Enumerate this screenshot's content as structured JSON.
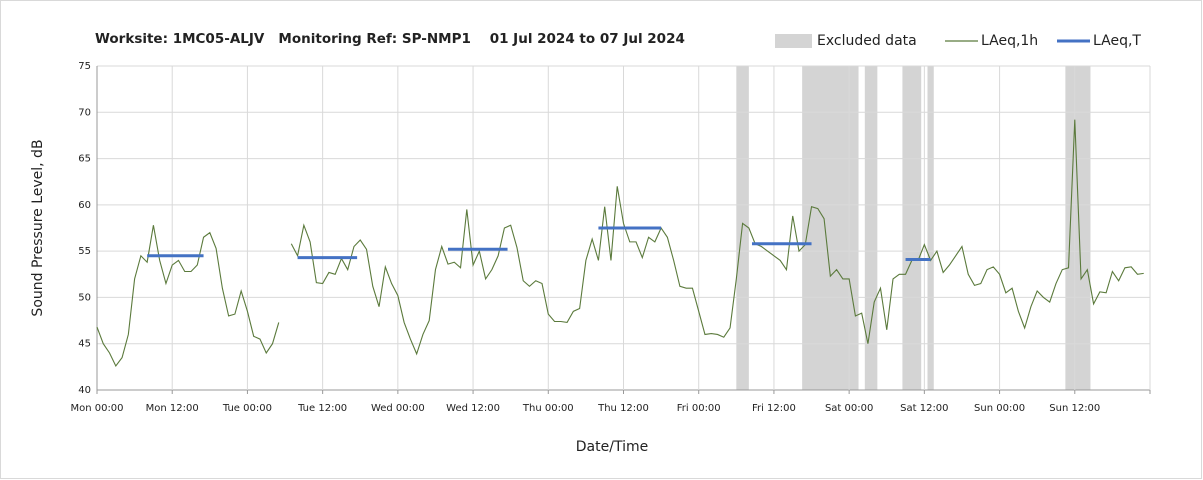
{
  "chart_data": {
    "type": "line",
    "title": "Worksite: 1MC05-ALJV   Monitoring Ref: SP-NMP1    01 Jul 2024 to 07 Jul 2024",
    "xlabel": "Date/Time",
    "ylabel": "Sound Pressure Level, dB",
    "xlim": [
      0,
      168
    ],
    "ylim": [
      40,
      75
    ],
    "yticks": [
      40,
      45,
      50,
      55,
      60,
      65,
      70,
      75
    ],
    "xticks": [
      {
        "value": 0,
        "label": "Mon 00:00"
      },
      {
        "value": 12,
        "label": "Mon 12:00"
      },
      {
        "value": 24,
        "label": "Tue 00:00"
      },
      {
        "value": 36,
        "label": "Tue 12:00"
      },
      {
        "value": 48,
        "label": "Wed 00:00"
      },
      {
        "value": 60,
        "label": "Wed 12:00"
      },
      {
        "value": 72,
        "label": "Thu 00:00"
      },
      {
        "value": 84,
        "label": "Thu 12:00"
      },
      {
        "value": 96,
        "label": "Fri 00:00"
      },
      {
        "value": 108,
        "label": "Fri 12:00"
      },
      {
        "value": 120,
        "label": "Sat 00:00"
      },
      {
        "value": 132,
        "label": "Sat 12:00"
      },
      {
        "value": 144,
        "label": "Sun 00:00"
      },
      {
        "value": 156,
        "label": "Sun 12:00"
      },
      {
        "value": 168,
        "label": null
      }
    ],
    "grid": true,
    "legend": "top-right",
    "x": [
      0,
      1,
      2,
      3,
      4,
      5,
      6,
      7,
      8,
      9,
      10,
      11,
      12,
      13,
      14,
      15,
      16,
      17,
      18,
      19,
      20,
      21,
      22,
      23,
      24,
      25,
      26,
      27,
      28,
      29,
      30,
      31,
      32,
      33,
      34,
      35,
      36,
      37,
      38,
      39,
      40,
      41,
      42,
      43,
      44,
      45,
      46,
      47,
      48,
      49,
      50,
      51,
      52,
      53,
      54,
      55,
      56,
      57,
      58,
      59,
      60,
      61,
      62,
      63,
      64,
      65,
      66,
      67,
      68,
      69,
      70,
      71,
      72,
      73,
      74,
      75,
      76,
      77,
      78,
      79,
      80,
      81,
      82,
      83,
      84,
      85,
      86,
      87,
      88,
      89,
      90,
      91,
      92,
      93,
      94,
      95,
      96,
      97,
      98,
      99,
      100,
      101,
      102,
      103,
      104,
      105,
      106,
      107,
      108,
      109,
      110,
      111,
      112,
      113,
      114,
      115,
      116,
      117,
      118,
      119,
      120,
      121,
      122,
      123,
      124,
      125,
      126,
      127,
      128,
      129,
      130,
      131,
      132,
      133,
      134,
      135,
      136,
      137,
      138,
      139,
      140,
      141,
      142,
      143,
      144,
      145,
      146,
      147,
      148,
      149,
      150,
      151,
      152,
      153,
      154,
      155,
      156,
      157,
      158,
      159,
      160,
      161,
      162,
      163,
      164,
      165,
      166,
      167
    ],
    "series": [
      {
        "name": "LAeq,1h",
        "color": "#5b7a3c",
        "values": [
          46.8,
          45,
          44,
          42.6,
          43.5,
          46,
          52,
          54.5,
          53.8,
          57.8,
          54,
          51.5,
          53.5,
          54,
          52.8,
          52.8,
          53.5,
          56.5,
          57,
          55.3,
          51,
          48,
          48.2,
          50.7,
          48.5,
          45.8,
          45.5,
          44,
          45,
          47.3,
          null,
          55.8,
          54.5,
          57.8,
          56,
          51.6,
          51.5,
          52.7,
          52.5,
          54.2,
          53,
          55.5,
          56.2,
          55.2,
          51.2,
          49,
          53.3,
          51.5,
          50.2,
          47.3,
          45.5,
          43.9,
          46,
          47.5,
          53,
          55.5,
          53.6,
          53.8,
          53.2,
          59.5,
          53.5,
          55,
          52,
          53,
          54.5,
          57.5,
          57.8,
          55.4,
          51.8,
          51.2,
          51.8,
          51.5,
          48.2,
          47.4,
          47.4,
          47.3,
          48.5,
          48.8,
          54,
          56.3,
          54,
          59.8,
          54,
          62,
          58,
          56,
          56,
          54.3,
          56.5,
          56,
          57.5,
          56.5,
          54,
          51.2,
          51,
          51,
          48.5,
          46,
          46.1,
          46,
          45.7,
          46.7,
          52,
          58,
          57.5,
          55.8,
          55.5,
          55,
          54.5,
          54,
          53,
          58.8,
          55,
          55.7,
          59.8,
          59.6,
          58.5,
          52.3,
          53,
          52,
          52,
          48,
          48.3,
          45,
          49.5,
          51,
          46.5,
          52,
          52.5,
          52.5,
          54,
          54,
          55.7,
          54,
          55,
          52.7,
          53.5,
          54.5,
          55.5,
          52.5,
          51.3,
          51.5,
          53,
          53.3,
          52.5,
          50.5,
          51,
          48.5,
          46.7,
          49,
          50.7,
          50,
          49.5,
          51.5,
          53,
          53.2,
          69.2,
          52,
          53,
          49.3,
          50.6,
          50.5,
          52.8,
          51.8,
          53.2,
          53.3,
          52.5,
          52.6
        ]
      }
    ],
    "periods": {
      "name": "LAeq,T",
      "color": "#4472c4",
      "items": [
        {
          "start": 8,
          "end": 17,
          "value": 54.5
        },
        {
          "start": 32,
          "end": 41.5,
          "value": 54.3
        },
        {
          "start": 56,
          "end": 65.5,
          "value": 55.2
        },
        {
          "start": 80,
          "end": 90,
          "value": 57.5
        },
        {
          "start": 104.5,
          "end": 114,
          "value": 55.8
        },
        {
          "start": 129,
          "end": 133,
          "value": 54.1
        }
      ]
    },
    "excluded": {
      "name": "Excluded data",
      "color": "#d4d4d4",
      "ranges": [
        [
          102,
          104
        ],
        [
          112.5,
          121.5
        ],
        [
          122.5,
          124.5
        ],
        [
          128.5,
          131.5
        ],
        [
          132.5,
          133.5
        ],
        [
          154.5,
          158.5
        ]
      ]
    }
  }
}
